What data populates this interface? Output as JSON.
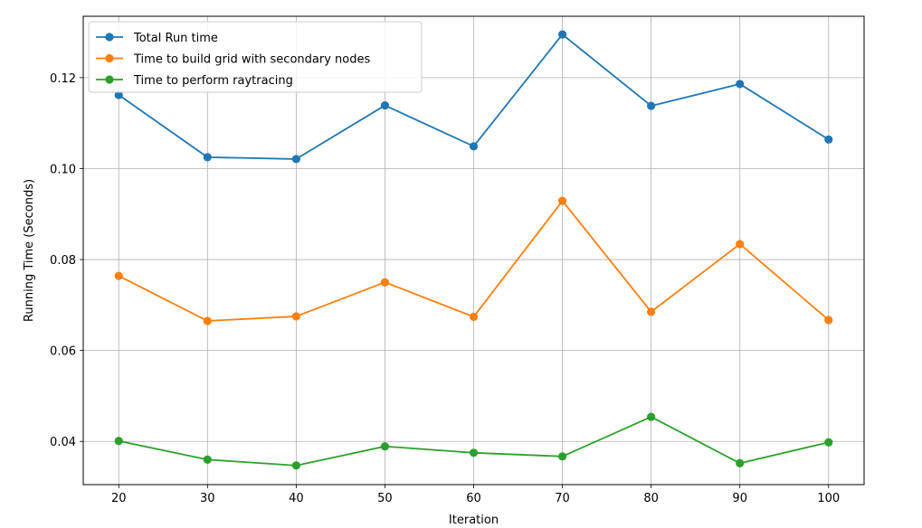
{
  "chart_data": {
    "type": "line",
    "xlabel": "Iteration",
    "ylabel": "Running Time (Seconds)",
    "x": [
      20,
      30,
      40,
      50,
      60,
      70,
      80,
      90,
      100
    ],
    "xticks": [
      "20",
      "30",
      "40",
      "50",
      "60",
      "70",
      "80",
      "90",
      "100"
    ],
    "yticks": [
      "0.04",
      "0.06",
      "0.08",
      "0.10",
      "0.12"
    ],
    "xlim": [
      16,
      104
    ],
    "ylim": [
      0.0305,
      0.1335
    ],
    "grid": true,
    "legend_position": "upper-left",
    "series": [
      {
        "name": "Total Run time",
        "color": "#1f77b4",
        "values": [
          0.1162,
          0.1025,
          0.1021,
          0.1139,
          0.1049,
          0.1295,
          0.1138,
          0.1186,
          0.1064
        ]
      },
      {
        "name": "Time to build grid with secondary nodes",
        "color": "#ff7f0e",
        "values": [
          0.0764,
          0.0665,
          0.0675,
          0.075,
          0.0674,
          0.0929,
          0.0685,
          0.0834,
          0.0667
        ]
      },
      {
        "name": "Time to perform raytracing",
        "color": "#2ca02c",
        "values": [
          0.0401,
          0.036,
          0.0347,
          0.0389,
          0.0375,
          0.0367,
          0.0454,
          0.0352,
          0.0398
        ]
      }
    ]
  }
}
